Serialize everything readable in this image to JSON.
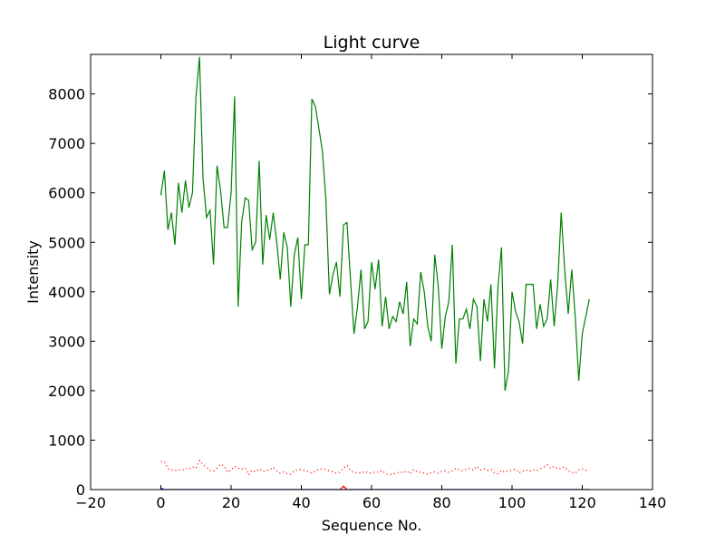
{
  "chart_data": {
    "type": "line",
    "title": "Light curve",
    "xlabel": "Sequence No.",
    "ylabel": "Intensity",
    "xlim": [
      -20,
      140
    ],
    "ylim": [
      0,
      8800
    ],
    "xticks": [
      -20,
      0,
      20,
      40,
      60,
      80,
      100,
      120,
      140
    ],
    "yticks": [
      0,
      1000,
      2000,
      3000,
      4000,
      5000,
      6000,
      7000,
      8000
    ],
    "xtick_labels": [
      "−20",
      "0",
      "20",
      "40",
      "60",
      "80",
      "100",
      "120",
      "140"
    ],
    "ytick_labels": [
      "0",
      "1000",
      "2000",
      "3000",
      "4000",
      "5000",
      "6000",
      "7000",
      "8000"
    ],
    "grid": false,
    "colors": {
      "green": "#008000",
      "red": "#ff0000",
      "blue": "#0000ff"
    },
    "series": [
      {
        "color": "#008000",
        "style": "solid",
        "values": [
          5950,
          6450,
          5250,
          5600,
          4950,
          6200,
          5600,
          6250,
          5700,
          6000,
          7950,
          8750,
          6300,
          5500,
          5650,
          4550,
          6550,
          6050,
          5300,
          5300,
          6000,
          7950,
          3700,
          5400,
          5900,
          5850,
          4850,
          5000,
          6650,
          4550,
          5550,
          5050,
          5600,
          5000,
          4250,
          5200,
          4900,
          3700,
          4750,
          5100,
          3850,
          4950,
          4950,
          7900,
          7750,
          7300,
          6850,
          5850,
          3950,
          4350,
          4600,
          3900,
          5350,
          5400,
          4250,
          3150,
          3700,
          4450,
          3250,
          3400,
          4600,
          4050,
          4650,
          3300,
          3900,
          3250,
          3500,
          3400,
          3800,
          3550,
          4200,
          2900,
          3450,
          3350,
          4400,
          4000,
          3300,
          3000,
          4750,
          4100,
          2850,
          3500,
          3800,
          4950,
          2550,
          3450,
          3450,
          3650,
          3250,
          3850,
          3700,
          2600,
          3850,
          3400,
          4150,
          2450,
          4100,
          4900,
          2000,
          2400,
          4000,
          3600,
          3400,
          2950,
          4150,
          4150,
          4150,
          3250,
          3750,
          3300,
          3450,
          4250,
          3300,
          4150,
          5600,
          4450,
          3550,
          4450,
          3500,
          2200,
          3150,
          3500,
          3850
        ]
      },
      {
        "color": "#ff0000",
        "style": "dotted",
        "values": [
          570,
          560,
          420,
          400,
          380,
          400,
          390,
          430,
          410,
          460,
          430,
          590,
          500,
          450,
          390,
          370,
          440,
          510,
          480,
          350,
          400,
          470,
          430,
          410,
          440,
          300,
          390,
          360,
          420,
          370,
          380,
          400,
          450,
          380,
          330,
          360,
          320,
          310,
          380,
          400,
          410,
          380,
          370,
          330,
          380,
          410,
          420,
          400,
          380,
          360,
          330,
          350,
          430,
          490,
          380,
          350,
          340,
          330,
          370,
          340,
          330,
          360,
          350,
          390,
          320,
          300,
          310,
          330,
          360,
          340,
          380,
          320,
          410,
          360,
          350,
          330,
          310,
          340,
          360,
          330,
          370,
          380,
          350,
          380,
          430,
          400,
          380,
          410,
          430,
          390,
          470,
          400,
          420,
          390,
          410,
          340,
          320,
          390,
          350,
          380,
          390,
          420,
          340,
          370,
          400,
          370,
          400,
          380,
          420,
          450,
          500,
          430,
          470,
          420,
          430,
          460,
          380,
          350,
          330,
          400,
          420,
          390,
          410
        ]
      },
      {
        "color": "#ff0000",
        "style": "solid",
        "values": [
          0,
          0,
          0,
          0,
          0,
          0,
          0,
          0,
          0,
          0,
          0,
          0,
          0,
          0,
          0,
          0,
          0,
          0,
          0,
          0,
          0,
          0,
          0,
          0,
          0,
          0,
          0,
          0,
          0,
          0,
          0,
          0,
          0,
          0,
          0,
          0,
          0,
          0,
          0,
          0,
          0,
          0,
          0,
          0,
          0,
          0,
          0,
          0,
          0,
          0,
          0,
          0,
          70,
          0,
          0,
          0,
          0,
          0,
          0,
          0,
          0,
          0,
          0,
          0,
          0,
          0,
          0,
          0,
          0,
          0,
          0,
          0,
          0,
          0,
          0,
          0,
          0,
          0,
          0,
          0,
          0,
          0,
          0,
          0,
          0,
          0,
          0,
          0,
          0,
          0,
          0,
          0,
          0,
          0,
          0,
          0,
          0,
          0,
          0,
          0,
          0,
          0,
          0,
          0,
          0,
          0,
          0,
          0,
          0,
          0,
          0,
          0,
          0,
          0,
          0,
          0,
          0,
          0,
          0,
          0,
          0,
          0,
          0
        ]
      },
      {
        "color": "#0000ff",
        "style": "solid",
        "values": [
          30,
          0,
          0,
          0,
          0,
          0,
          0,
          0,
          0,
          0,
          0,
          0,
          0,
          0,
          0,
          0,
          0,
          0,
          0,
          0,
          0,
          0,
          0,
          0,
          0,
          0,
          0,
          0,
          0,
          0,
          0,
          0,
          0,
          0,
          0,
          0,
          0,
          0,
          0,
          0,
          0,
          0,
          0,
          0,
          0,
          0,
          0,
          0,
          0,
          0,
          0,
          0,
          0,
          0,
          0,
          0,
          0,
          0,
          0,
          0,
          0,
          0,
          0,
          0,
          0,
          0,
          0,
          0,
          0,
          0,
          0,
          0,
          0,
          0,
          0,
          0,
          0,
          0,
          0,
          0,
          0,
          0,
          0,
          0,
          0,
          0,
          0,
          0,
          0,
          0,
          0,
          0,
          0,
          0,
          0,
          0,
          0,
          0,
          0,
          0,
          0,
          0,
          0,
          0,
          0,
          0,
          0,
          0,
          0,
          0,
          0,
          0,
          0,
          0,
          0,
          0,
          0,
          0,
          0,
          0,
          0,
          0,
          0
        ]
      }
    ]
  }
}
